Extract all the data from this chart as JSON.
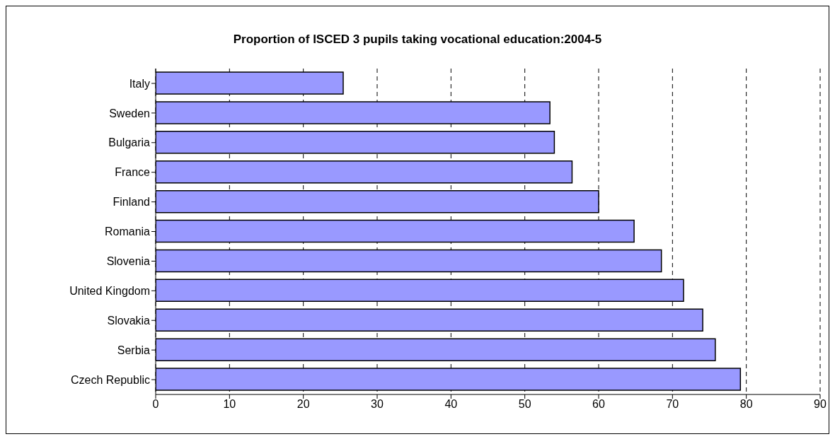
{
  "chart_data": {
    "type": "bar",
    "orientation": "horizontal",
    "title": "Proportion of ISCED 3 pupils taking vocational education:2004-5",
    "categories": [
      "Italy",
      "Sweden",
      "Bulgaria",
      "France",
      "Finland",
      "Romania",
      "Slovenia",
      "United Kingdom",
      "Slovakia",
      "Serbia",
      "Czech Republic"
    ],
    "values": [
      25.4,
      53.4,
      54,
      56.4,
      60,
      64.8,
      68.5,
      71.5,
      74.1,
      75.8,
      79.2
    ],
    "color": "#9999ff",
    "xlim": [
      0,
      90
    ],
    "xticks": [
      0,
      10,
      20,
      30,
      40,
      50,
      60,
      70,
      80,
      90
    ],
    "grid": "x"
  }
}
